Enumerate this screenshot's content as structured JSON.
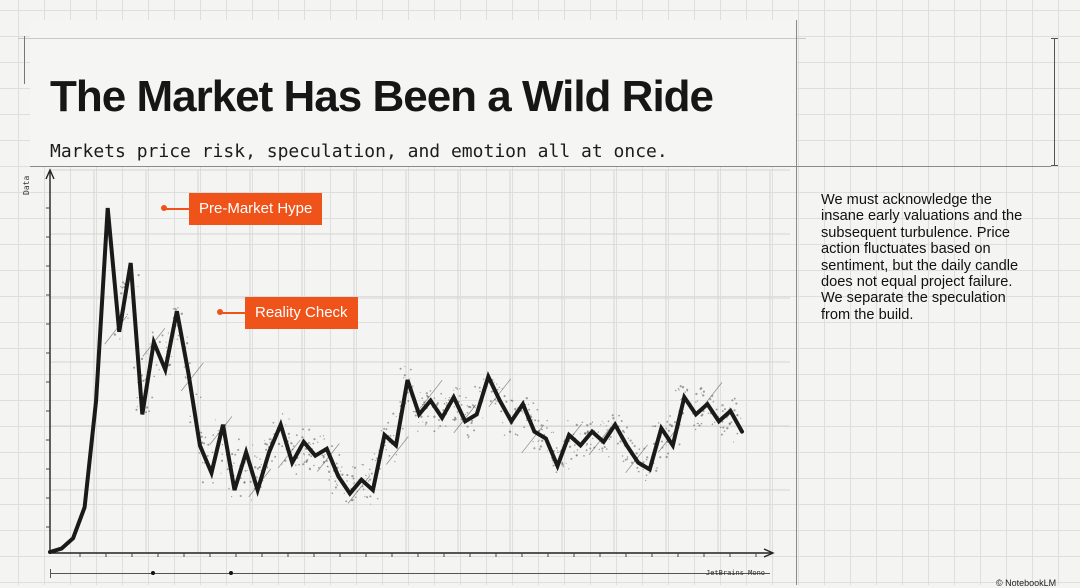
{
  "header": {
    "title": "The Market Has Been a Wild Ride",
    "subtitle": "Markets price risk, speculation, and emotion all at once."
  },
  "sidebar": {
    "text": "We must acknowledge the insane early valuations and the subsequent turbulence. Price action fluctuates based on sentiment, but the daily candle does not equal project failure. We separate the speculation from the build."
  },
  "chart_data": {
    "type": "line",
    "title": "The Market Has Been a Wild Ride",
    "subtitle": "Markets price risk, speculation, and emotion all at once.",
    "xlabel": "",
    "ylabel": "Data",
    "ylim": [
      0,
      100
    ],
    "grid": true,
    "series": [
      {
        "values": [
          0,
          1,
          4,
          13,
          44,
          100,
          64,
          84,
          40,
          61,
          53,
          70,
          52,
          31,
          23,
          37,
          18,
          29,
          18,
          29,
          37,
          26,
          32,
          28,
          30,
          22,
          17,
          21,
          18,
          34,
          31,
          50,
          40,
          44,
          39,
          45,
          38,
          40,
          51,
          44,
          38,
          43,
          35,
          33,
          25,
          34,
          31,
          35,
          32,
          37,
          31,
          26,
          24,
          36,
          31,
          45,
          40,
          43,
          38,
          41,
          35
        ]
      }
    ],
    "annotations": [
      {
        "label": "Pre-Market Hype",
        "index": 5
      },
      {
        "label": "Reality Check",
        "index": 11
      }
    ],
    "colors": {
      "line": "#1a1a1a",
      "accent": "#f0531a",
      "grid": "#dedede"
    }
  },
  "footer": {
    "font_label": "JetBrains Mono",
    "credit": "© NotebookLM"
  }
}
